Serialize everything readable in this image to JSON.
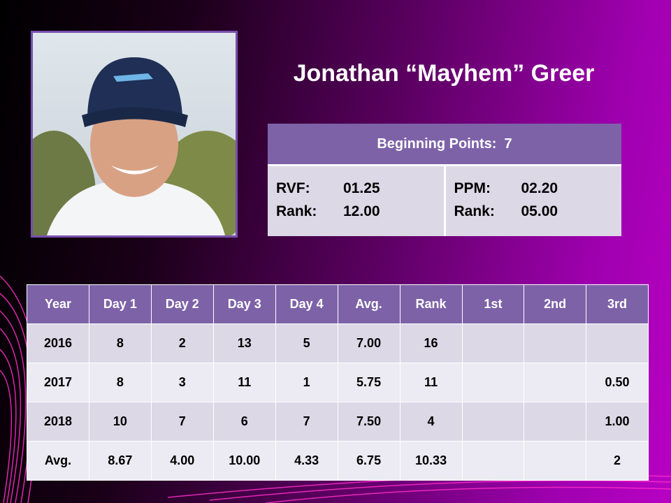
{
  "header": {
    "title": "Jonathan “Mayhem” Greer"
  },
  "summary": {
    "label": "Beginning Points:",
    "value": "7",
    "left": [
      {
        "label": "RVF:",
        "value": "01.25"
      },
      {
        "label": "Rank:",
        "value": "12.00"
      }
    ],
    "right": [
      {
        "label": "PPM:",
        "value": "02.20"
      },
      {
        "label": "Rank:",
        "value": "05.00"
      }
    ]
  },
  "table": {
    "columns": [
      "Year",
      "Day 1",
      "Day 2",
      "Day 3",
      "Day 4",
      "Avg.",
      "Rank",
      "1st",
      "2nd",
      "3rd"
    ],
    "rows": [
      [
        "2016",
        "8",
        "2",
        "13",
        "5",
        "7.00",
        "16",
        null,
        null,
        null
      ],
      [
        "2017",
        "8",
        "3",
        "11",
        "1",
        "5.75",
        "11",
        null,
        null,
        "0.50"
      ],
      [
        "2018",
        "10",
        "7",
        "6",
        "7",
        "7.50",
        "4",
        null,
        null,
        "1.00"
      ],
      [
        "Avg.",
        "8.67",
        "4.00",
        "10.00",
        "4.33",
        "6.75",
        "10.33",
        null,
        null,
        "2"
      ]
    ]
  }
}
